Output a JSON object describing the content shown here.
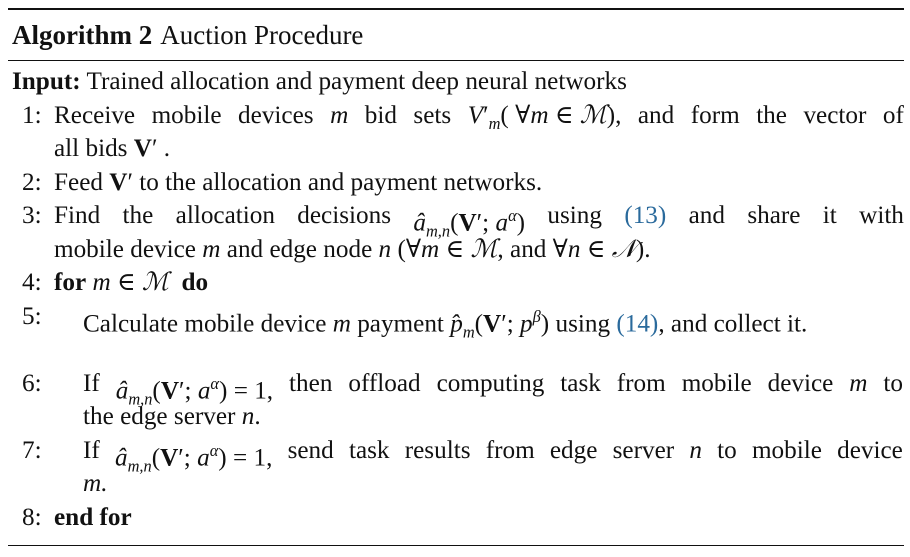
{
  "algorithm": {
    "label": "Algorithm 2",
    "title": "Auction Procedure"
  },
  "input": {
    "label": "Input:",
    "text": "Trained allocation and payment deep neural networks"
  },
  "steps": [
    {
      "num": "1:",
      "line1": "Receive mobile devices m bid sets V′m( ∀m ∈ ℳ), and form the vector of",
      "line2": "all bids V′ ."
    },
    {
      "num": "2:",
      "line1": "Feed V′ to the allocation and payment networks."
    },
    {
      "num": "3:",
      "line1": "Find the allocation decisions âm,n(V′; aα) using (13), and share it with",
      "line2": "mobile device m and edge node n (∀m ∈ ℳ, and ∀n ∈ 𝒩)."
    },
    {
      "num": "4:",
      "line1": "for m ∈ ℳ do"
    },
    {
      "num": "5:",
      "line1": "Calculate mobile device m payment p̂m(V′; pβ) using (14), and collect it."
    },
    {
      "num": "6:",
      "line1": "If âm,n(V′; aα) = 1, then offload computing task from mobile device m to",
      "line2": "the edge server n."
    },
    {
      "num": "7:",
      "line1": "If âm,n(V′; aα) = 1, send task results from edge server n to mobile device",
      "line2": "m."
    },
    {
      "num": "8:",
      "line1": "end for"
    }
  ],
  "citations": [
    "(13)",
    "(14)"
  ]
}
